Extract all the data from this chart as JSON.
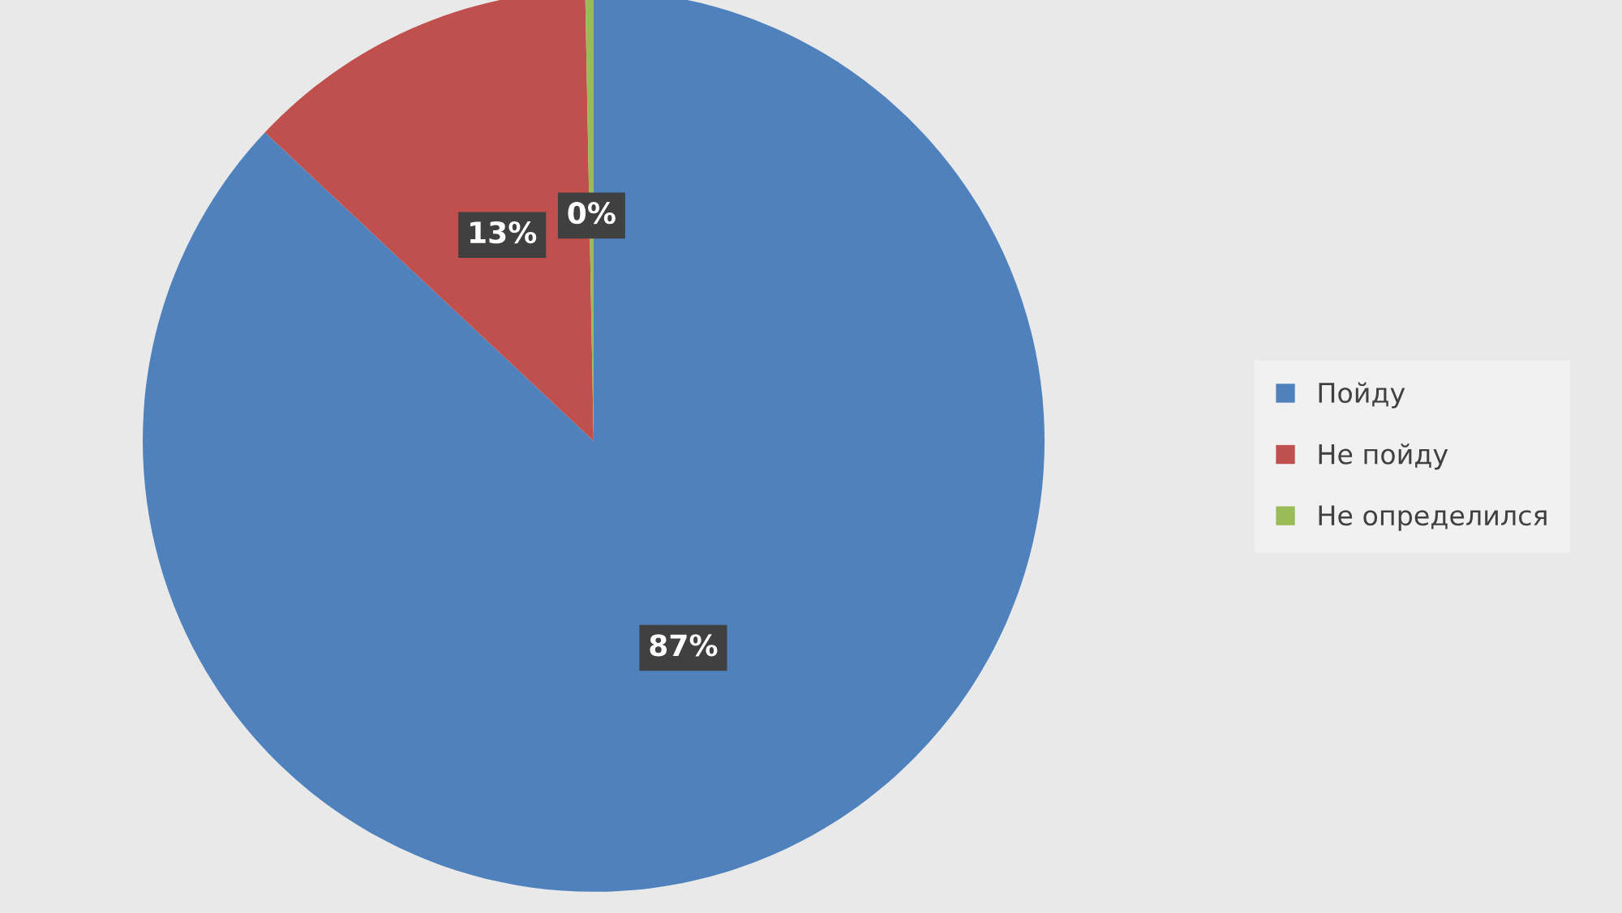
{
  "chart_data": {
    "type": "pie",
    "categories": [
      "Пойду",
      "Не пойду",
      "Не определился"
    ],
    "values": [
      87,
      12.7,
      0.3
    ],
    "colors": [
      "#4f81bd",
      "#c0504d",
      "#9bbb59"
    ],
    "value_labels": [
      "87%",
      "13%",
      "0%"
    ],
    "legend": "right"
  }
}
